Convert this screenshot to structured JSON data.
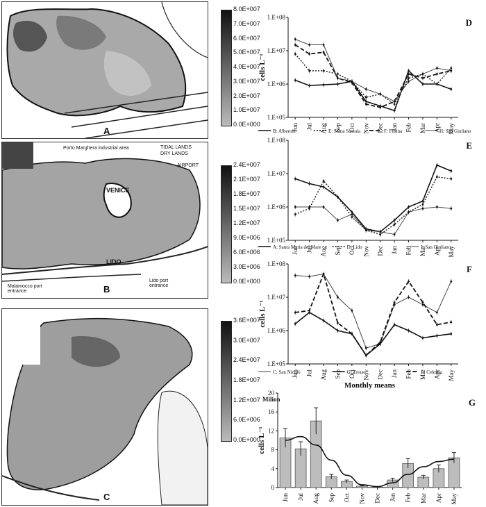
{
  "maps": [
    {
      "letter": "A",
      "colorbar": [
        "8.0E+007",
        "7.0E+007",
        "6.0E+007",
        "5.0E+007",
        "4.0E+007",
        "3.0E+007",
        "2.0E+007",
        "1.0E+007",
        "0.0E+000"
      ],
      "labels": []
    },
    {
      "letter": "B",
      "colorbar": [
        "2.4E+007",
        "2.1E+007",
        "1.8E+007",
        "1.5E+007",
        "1.2E+007",
        "9.0E+006",
        "6.0E+006",
        "3.0E+006",
        "0.0E+000"
      ],
      "labels": [
        "Porto Marghera industrial area",
        "TIDAL LANDS",
        "DRY LANDS",
        "AIRPORT",
        "VENICE",
        "LIDO",
        "Malamocco port entrance",
        "Lido port entrance"
      ]
    },
    {
      "letter": "C",
      "colorbar": [
        "3.6E+007",
        "3.0E+007",
        "2.4E+007",
        "1.8E+007",
        "1.2E+007",
        "6.0E+006",
        "0.0E+000"
      ],
      "labels": []
    }
  ],
  "chart_data": [
    {
      "type": "line",
      "letter": "D",
      "ylabel": "cells L⁻¹",
      "yscale": "log",
      "ylim": [
        100000,
        100000000
      ],
      "yticks": [
        "1.E+05",
        "1.E+06",
        "1.E+07",
        "1.E+08"
      ],
      "categories": [
        "Jun",
        "Jul",
        "Aug",
        "Sep",
        "Oct",
        "Nov",
        "Dec",
        "Jan",
        "Feb",
        "Mar",
        "Apr",
        "May"
      ],
      "series": [
        {
          "name": "B: Alberoni",
          "style": "solid",
          "values": [
            1300000,
            900000,
            950000,
            1000000,
            1200000,
            300000,
            220000,
            160000,
            2500000,
            1000000,
            1000000,
            700000
          ]
        },
        {
          "name": "E: Santa Sassola",
          "style": "dotted",
          "values": [
            8000000,
            2500000,
            2500000,
            2000000,
            1200000,
            400000,
            500000,
            250000,
            1500000,
            2000000,
            1000000,
            3000000
          ]
        },
        {
          "name": "F: Fusina",
          "style": "dashed",
          "values": [
            15000000,
            8000000,
            9000000,
            1500000,
            1100000,
            250000,
            200000,
            300000,
            2000000,
            1500000,
            2000000,
            2500000
          ]
        },
        {
          "name": "H: San Giuliano",
          "style": "solid-thin",
          "values": [
            22000000,
            15000000,
            15000000,
            1500000,
            1200000,
            700000,
            500000,
            300000,
            1200000,
            2000000,
            3000000,
            2500000
          ]
        }
      ]
    },
    {
      "type": "line",
      "letter": "E",
      "ylabel": "",
      "yscale": "log",
      "ylim": [
        100000,
        100000000
      ],
      "yticks": [
        "1.E+05",
        "1.E+06",
        "1.E+07",
        "1.E+08"
      ],
      "categories": [
        "Jun",
        "Jul",
        "Aug",
        "Sep",
        "Oct",
        "Nov",
        "Dec",
        "Jan",
        "Feb",
        "Mar",
        "Apr",
        "May"
      ],
      "series": [
        {
          "name": "A: Santa Maria del Mare",
          "style": "solid",
          "values": [
            7000000,
            5000000,
            4000000,
            2000000,
            700000,
            220000,
            180000,
            400000,
            1000000,
            1500000,
            18000000,
            12000000
          ]
        },
        {
          "name": "D: Lido",
          "style": "dotted",
          "values": [
            600000,
            900000,
            6000000,
            2000000,
            500000,
            200000,
            150000,
            300000,
            700000,
            1200000,
            8000000,
            7000000
          ]
        },
        {
          "name": "I: San Giuliano",
          "style": "solid-thin",
          "values": [
            1000000,
            1000000,
            1000000,
            400000,
            600000,
            200000,
            180000,
            150000,
            700000,
            900000,
            1000000,
            900000
          ]
        }
      ]
    },
    {
      "type": "line",
      "letter": "F",
      "ylabel": "cells L⁻¹",
      "yscale": "log",
      "ylim": [
        100000,
        100000000
      ],
      "yticks": [
        "1.E+05",
        "1.E+06",
        "1.E+07",
        "1.E+08"
      ],
      "categories": [
        "Jun",
        "Jul",
        "Aug",
        "Sep",
        "Oct",
        "Nov",
        "Dec",
        "Jan",
        "Feb",
        "Mar",
        "Apr",
        "May"
      ],
      "series": [
        {
          "name": "C: San Nicolò",
          "style": "solid-thin",
          "values": [
            45000000,
            42000000,
            50000000,
            10000000,
            4000000,
            300000,
            400000,
            6000000,
            10000000,
            6000000,
            3500000,
            30000000
          ]
        },
        {
          "name": "G: Tresse",
          "style": "solid",
          "values": [
            1600000,
            3500000,
            2000000,
            1000000,
            800000,
            180000,
            400000,
            1500000,
            1000000,
            600000,
            700000,
            800000
          ]
        },
        {
          "name": "L: Celestia",
          "style": "dashed",
          "values": [
            3500000,
            4000000,
            50000000,
            1700000,
            800000,
            180000,
            450000,
            7000000,
            30000000,
            7000000,
            1500000,
            1800000
          ]
        }
      ]
    },
    {
      "type": "bar",
      "letter": "G",
      "title": "Monthly means",
      "ylabel": "cells L⁻¹",
      "yunit": "Milion",
      "ylim": [
        0,
        20
      ],
      "yticks": [
        "0",
        "4",
        "8",
        "12",
        "16",
        "20"
      ],
      "categories": [
        "Jun",
        "Jul",
        "Aug",
        "Sep",
        "Oct",
        "Nov",
        "Dec",
        "Jan",
        "Feb",
        "Mar",
        "Apr",
        "May"
      ],
      "values": [
        10.5,
        8.2,
        14.1,
        2.3,
        1.3,
        0.3,
        0.1,
        1.6,
        5.1,
        2.2,
        4.0,
        6.3
      ],
      "errors": [
        2.0,
        1.5,
        2.8,
        0.5,
        0.3,
        0.1,
        0.1,
        0.4,
        1.0,
        0.4,
        0.8,
        1.1
      ],
      "trend": [
        10.0,
        10.8,
        9.0,
        5.8,
        2.6,
        0.6,
        0.2,
        1.0,
        2.8,
        4.4,
        5.5,
        6.0
      ]
    }
  ]
}
